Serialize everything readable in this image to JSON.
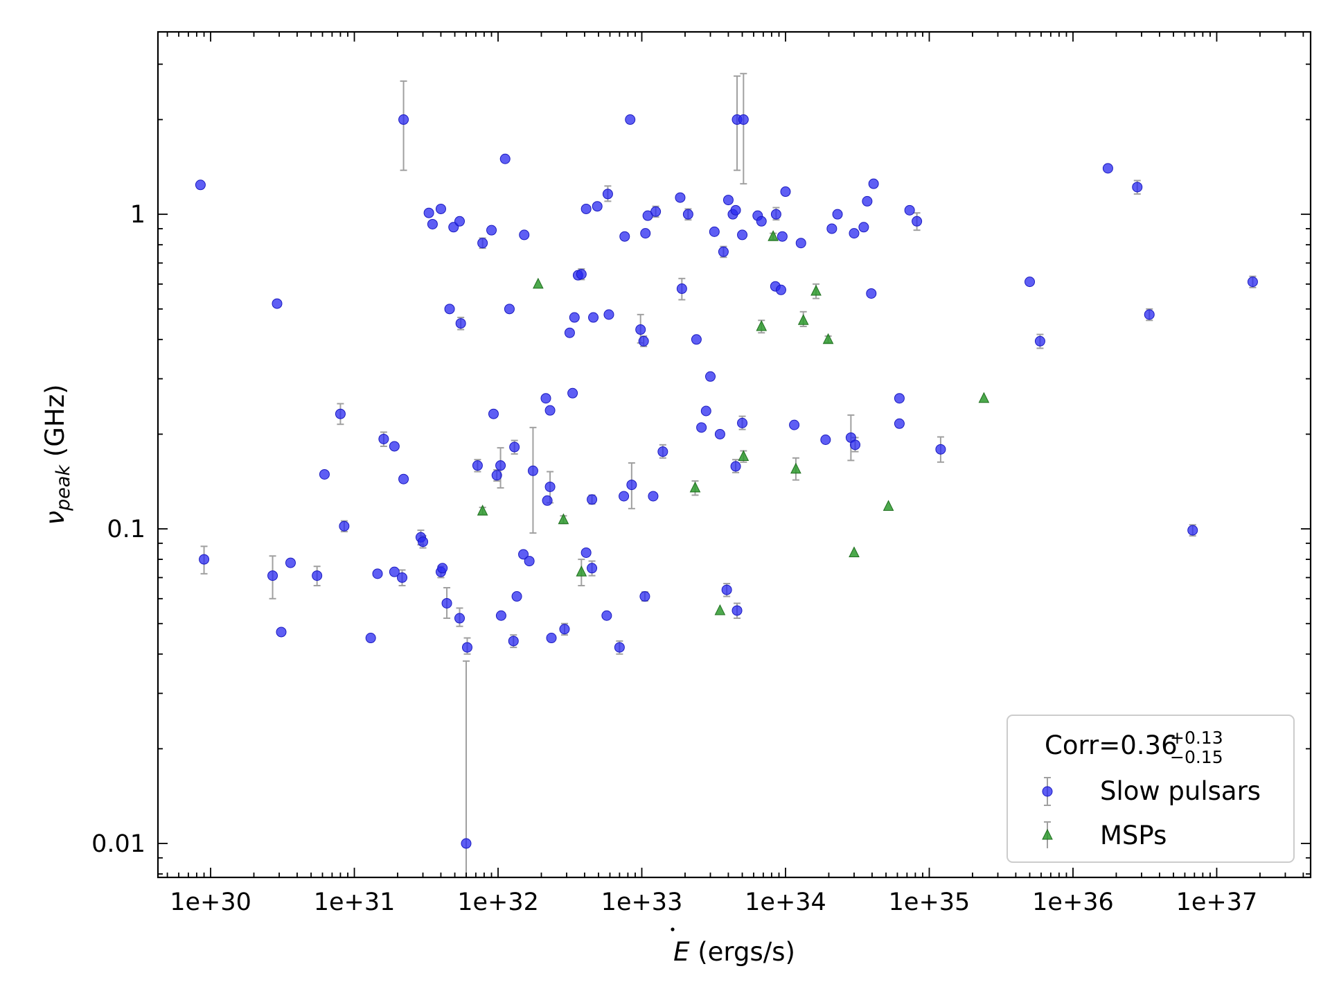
{
  "chart_data": {
    "type": "scatter",
    "xscale": "log",
    "yscale": "log",
    "xlabel": "Ė (ergs/s)",
    "ylabel": "ν_peak (GHz)",
    "xlim": [
      4.3e+29,
      4.5e+37
    ],
    "ylim": [
      0.0078,
      3.8
    ],
    "x_ticks": [
      {
        "value": 1e+30,
        "label": "1e+30"
      },
      {
        "value": 1e+31,
        "label": "1e+31"
      },
      {
        "value": 1e+32,
        "label": "1e+32"
      },
      {
        "value": 1e+33,
        "label": "1e+33"
      },
      {
        "value": 1e+34,
        "label": "1e+34"
      },
      {
        "value": 1e+35,
        "label": "1e+35"
      },
      {
        "value": 1e+36,
        "label": "1e+36"
      },
      {
        "value": 1e+37,
        "label": "1e+37"
      }
    ],
    "y_ticks": [
      {
        "value": 0.01,
        "label": "0.01"
      },
      {
        "value": 0.1,
        "label": "0.1"
      },
      {
        "value": 1,
        "label": "1"
      }
    ],
    "legend": {
      "position": "lower-right",
      "title": "Corr=0.36",
      "title_sup": "+0.13",
      "title_sub": "−0.15",
      "entries": [
        "Slow pulsars",
        "MSPs"
      ]
    },
    "colors": {
      "slow": "#2828f0",
      "msp": "#2e9a2e",
      "errorbar": "#a0a0a0"
    },
    "series": [
      {
        "name": "Slow pulsars",
        "marker": "circle",
        "points": [
          {
            "x": 8.5e+29,
            "y": 1.24
          },
          {
            "x": 9e+29,
            "y": 0.08,
            "ylo": 0.072,
            "yhi": 0.088
          },
          {
            "x": 2.7e+30,
            "y": 0.071,
            "ylo": 0.06,
            "yhi": 0.082
          },
          {
            "x": 2.9e+30,
            "y": 0.52
          },
          {
            "x": 3.1e+30,
            "y": 0.047
          },
          {
            "x": 3.6e+30,
            "y": 0.078
          },
          {
            "x": 5.5e+30,
            "y": 0.071,
            "ylo": 0.066,
            "yhi": 0.076
          },
          {
            "x": 6.2e+30,
            "y": 0.149
          },
          {
            "x": 8e+30,
            "y": 0.232,
            "ylo": 0.215,
            "yhi": 0.25
          },
          {
            "x": 8.5e+30,
            "y": 0.102,
            "ylo": 0.098,
            "yhi": 0.106
          },
          {
            "x": 1.3e+31,
            "y": 0.045
          },
          {
            "x": 1.45e+31,
            "y": 0.072
          },
          {
            "x": 1.6e+31,
            "y": 0.193,
            "ylo": 0.183,
            "yhi": 0.203
          },
          {
            "x": 1.9e+31,
            "y": 0.183
          },
          {
            "x": 1.9e+31,
            "y": 0.073
          },
          {
            "x": 2.15e+31,
            "y": 0.07,
            "ylo": 0.066,
            "yhi": 0.074
          },
          {
            "x": 2.2e+31,
            "y": 2.0,
            "ylo": 1.38,
            "yhi": 2.65
          },
          {
            "x": 2.2e+31,
            "y": 0.144
          },
          {
            "x": 2.9e+31,
            "y": 0.094,
            "ylo": 0.089,
            "yhi": 0.099
          },
          {
            "x": 3e+31,
            "y": 0.091,
            "ylo": 0.087,
            "yhi": 0.095
          },
          {
            "x": 3.3e+31,
            "y": 1.01
          },
          {
            "x": 3.5e+31,
            "y": 0.93
          },
          {
            "x": 4e+31,
            "y": 1.04
          },
          {
            "x": 4e+31,
            "y": 0.073,
            "ylo": 0.07,
            "yhi": 0.076
          },
          {
            "x": 4.1e+31,
            "y": 0.075
          },
          {
            "x": 4.4e+31,
            "y": 0.058,
            "ylo": 0.052,
            "yhi": 0.065
          },
          {
            "x": 4.6e+31,
            "y": 0.5
          },
          {
            "x": 4.9e+31,
            "y": 0.91
          },
          {
            "x": 5.4e+31,
            "y": 0.95
          },
          {
            "x": 5.4e+31,
            "y": 0.052,
            "ylo": 0.049,
            "yhi": 0.056
          },
          {
            "x": 5.5e+31,
            "y": 0.45,
            "ylo": 0.43,
            "yhi": 0.47
          },
          {
            "x": 6.1e+31,
            "y": 0.042,
            "ylo": 0.04,
            "yhi": 0.045
          },
          {
            "x": 6e+31,
            "y": 0.01,
            "ylo": 0.0078,
            "yhi": 0.038
          },
          {
            "x": 7.2e+31,
            "y": 0.159,
            "ylo": 0.152,
            "yhi": 0.166
          },
          {
            "x": 7.8e+31,
            "y": 0.81,
            "ylo": 0.78,
            "yhi": 0.84
          },
          {
            "x": 9e+31,
            "y": 0.89
          },
          {
            "x": 9.3e+31,
            "y": 0.232
          },
          {
            "x": 9.8e+31,
            "y": 0.148,
            "ylo": 0.142,
            "yhi": 0.154
          },
          {
            "x": 1.04e+32,
            "y": 0.159,
            "ylo": 0.135,
            "yhi": 0.181
          },
          {
            "x": 1.05e+32,
            "y": 0.053
          },
          {
            "x": 1.12e+32,
            "y": 1.5
          },
          {
            "x": 1.2e+32,
            "y": 0.5
          },
          {
            "x": 1.28e+32,
            "y": 0.044,
            "ylo": 0.042,
            "yhi": 0.046
          },
          {
            "x": 1.3e+32,
            "y": 0.182,
            "ylo": 0.173,
            "yhi": 0.191
          },
          {
            "x": 1.35e+32,
            "y": 0.061
          },
          {
            "x": 1.5e+32,
            "y": 0.083
          },
          {
            "x": 1.52e+32,
            "y": 0.86
          },
          {
            "x": 1.65e+32,
            "y": 0.079
          },
          {
            "x": 1.75e+32,
            "y": 0.153,
            "ylo": 0.097,
            "yhi": 0.21
          },
          {
            "x": 2.15e+32,
            "y": 0.26
          },
          {
            "x": 2.2e+32,
            "y": 0.123
          },
          {
            "x": 2.3e+32,
            "y": 0.238
          },
          {
            "x": 2.3e+32,
            "y": 0.136,
            "ylo": 0.121,
            "yhi": 0.152
          },
          {
            "x": 2.35e+32,
            "y": 0.045
          },
          {
            "x": 2.9e+32,
            "y": 0.048,
            "ylo": 0.046,
            "yhi": 0.05
          },
          {
            "x": 3.15e+32,
            "y": 0.42
          },
          {
            "x": 3.3e+32,
            "y": 0.27
          },
          {
            "x": 3.4e+32,
            "y": 0.47
          },
          {
            "x": 3.6e+32,
            "y": 0.64
          },
          {
            "x": 3.8e+32,
            "y": 0.645,
            "ylo": 0.62,
            "yhi": 0.67
          },
          {
            "x": 4.1e+32,
            "y": 1.04
          },
          {
            "x": 4.1e+32,
            "y": 0.084
          },
          {
            "x": 4.5e+32,
            "y": 0.075,
            "ylo": 0.071,
            "yhi": 0.079
          },
          {
            "x": 4.5e+32,
            "y": 0.124,
            "ylo": 0.12,
            "yhi": 0.128
          },
          {
            "x": 4.6e+32,
            "y": 0.47
          },
          {
            "x": 4.9e+32,
            "y": 1.06
          },
          {
            "x": 5.7e+32,
            "y": 0.053
          },
          {
            "x": 5.8e+32,
            "y": 1.16,
            "ylo": 1.1,
            "yhi": 1.23
          },
          {
            "x": 5.9e+32,
            "y": 0.48
          },
          {
            "x": 7e+32,
            "y": 0.042,
            "ylo": 0.04,
            "yhi": 0.044
          },
          {
            "x": 7.5e+32,
            "y": 0.127
          },
          {
            "x": 7.6e+32,
            "y": 0.85
          },
          {
            "x": 8.3e+32,
            "y": 2.0
          },
          {
            "x": 8.5e+32,
            "y": 0.138,
            "ylo": 0.116,
            "yhi": 0.162
          },
          {
            "x": 9.8e+32,
            "y": 0.43,
            "ylo": 0.39,
            "yhi": 0.48
          },
          {
            "x": 1.03e+33,
            "y": 0.395,
            "ylo": 0.38,
            "yhi": 0.41
          },
          {
            "x": 1.05e+33,
            "y": 0.061,
            "ylo": 0.059,
            "yhi": 0.063
          },
          {
            "x": 1.06e+33,
            "y": 0.87
          },
          {
            "x": 1.1e+33,
            "y": 0.99
          },
          {
            "x": 1.2e+33,
            "y": 0.127
          },
          {
            "x": 1.25e+33,
            "y": 1.02,
            "ylo": 0.98,
            "yhi": 1.06
          },
          {
            "x": 1.4e+33,
            "y": 0.176,
            "ylo": 0.168,
            "yhi": 0.185
          },
          {
            "x": 1.85e+33,
            "y": 1.13
          },
          {
            "x": 1.9e+33,
            "y": 0.58,
            "ylo": 0.535,
            "yhi": 0.625
          },
          {
            "x": 2.1e+33,
            "y": 1.0,
            "ylo": 0.96,
            "yhi": 1.04
          },
          {
            "x": 2.4e+33,
            "y": 0.4
          },
          {
            "x": 2.6e+33,
            "y": 0.21
          },
          {
            "x": 2.8e+33,
            "y": 0.237
          },
          {
            "x": 3e+33,
            "y": 0.305
          },
          {
            "x": 3.2e+33,
            "y": 0.88
          },
          {
            "x": 3.5e+33,
            "y": 0.2
          },
          {
            "x": 3.7e+33,
            "y": 0.76,
            "ylo": 0.73,
            "yhi": 0.79
          },
          {
            "x": 3.9e+33,
            "y": 0.064,
            "ylo": 0.061,
            "yhi": 0.067
          },
          {
            "x": 4e+33,
            "y": 1.11
          },
          {
            "x": 4.3e+33,
            "y": 1.0
          },
          {
            "x": 4.5e+33,
            "y": 0.158,
            "ylo": 0.151,
            "yhi": 0.166
          },
          {
            "x": 4.5e+33,
            "y": 1.03
          },
          {
            "x": 4.6e+33,
            "y": 0.055,
            "ylo": 0.052,
            "yhi": 0.058
          },
          {
            "x": 4.6e+33,
            "y": 2.0,
            "ylo": 1.38,
            "yhi": 2.75
          },
          {
            "x": 5e+33,
            "y": 0.217,
            "ylo": 0.207,
            "yhi": 0.228
          },
          {
            "x": 5e+33,
            "y": 0.86
          },
          {
            "x": 5.1e+33,
            "y": 2.0,
            "ylo": 1.25,
            "yhi": 2.8
          },
          {
            "x": 6.4e+33,
            "y": 0.99
          },
          {
            "x": 6.8e+33,
            "y": 0.95
          },
          {
            "x": 8.5e+33,
            "y": 0.59
          },
          {
            "x": 8.6e+33,
            "y": 1.0,
            "ylo": 0.96,
            "yhi": 1.05
          },
          {
            "x": 9.3e+33,
            "y": 0.575
          },
          {
            "x": 9.5e+33,
            "y": 0.85
          },
          {
            "x": 1e+34,
            "y": 1.18
          },
          {
            "x": 1.15e+34,
            "y": 0.214
          },
          {
            "x": 1.28e+34,
            "y": 0.81
          },
          {
            "x": 1.9e+34,
            "y": 0.192
          },
          {
            "x": 2.1e+34,
            "y": 0.9
          },
          {
            "x": 2.3e+34,
            "y": 1.0
          },
          {
            "x": 2.85e+34,
            "y": 0.195,
            "ylo": 0.165,
            "yhi": 0.23
          },
          {
            "x": 3e+34,
            "y": 0.87
          },
          {
            "x": 3.05e+34,
            "y": 0.185,
            "ylo": 0.176,
            "yhi": 0.195
          },
          {
            "x": 3.5e+34,
            "y": 0.91
          },
          {
            "x": 3.7e+34,
            "y": 1.1
          },
          {
            "x": 3.95e+34,
            "y": 0.56
          },
          {
            "x": 4.1e+34,
            "y": 1.25
          },
          {
            "x": 6.2e+34,
            "y": 0.26
          },
          {
            "x": 6.2e+34,
            "y": 0.216
          },
          {
            "x": 7.3e+34,
            "y": 1.03
          },
          {
            "x": 8.2e+34,
            "y": 0.95,
            "ylo": 0.89,
            "yhi": 1.01
          },
          {
            "x": 1.2e+35,
            "y": 0.179,
            "ylo": 0.163,
            "yhi": 0.196
          },
          {
            "x": 5e+35,
            "y": 0.61
          },
          {
            "x": 5.9e+35,
            "y": 0.395,
            "ylo": 0.375,
            "yhi": 0.415
          },
          {
            "x": 1.75e+36,
            "y": 1.4
          },
          {
            "x": 2.8e+36,
            "y": 1.22,
            "ylo": 1.16,
            "yhi": 1.28
          },
          {
            "x": 3.4e+36,
            "y": 0.48,
            "ylo": 0.46,
            "yhi": 0.5
          },
          {
            "x": 6.8e+36,
            "y": 0.099,
            "ylo": 0.095,
            "yhi": 0.103
          },
          {
            "x": 1.78e+37,
            "y": 0.61,
            "ylo": 0.585,
            "yhi": 0.635
          }
        ]
      },
      {
        "name": "MSPs",
        "marker": "triangle",
        "points": [
          {
            "x": 7.8e+31,
            "y": 0.114,
            "ylo": 0.111,
            "yhi": 0.117
          },
          {
            "x": 1.9e+32,
            "y": 0.6
          },
          {
            "x": 2.85e+32,
            "y": 0.107,
            "ylo": 0.104,
            "yhi": 0.11
          },
          {
            "x": 3.8e+32,
            "y": 0.073,
            "ylo": 0.066,
            "yhi": 0.08
          },
          {
            "x": 2.35e+33,
            "y": 0.135,
            "ylo": 0.128,
            "yhi": 0.142
          },
          {
            "x": 3.5e+33,
            "y": 0.055
          },
          {
            "x": 5.1e+33,
            "y": 0.17,
            "ylo": 0.163,
            "yhi": 0.177
          },
          {
            "x": 6.8e+33,
            "y": 0.44,
            "ylo": 0.42,
            "yhi": 0.46
          },
          {
            "x": 8.2e+33,
            "y": 0.85,
            "ylo": 0.83,
            "yhi": 0.87
          },
          {
            "x": 1.18e+34,
            "y": 0.155,
            "ylo": 0.143,
            "yhi": 0.168
          },
          {
            "x": 1.33e+34,
            "y": 0.46,
            "ylo": 0.44,
            "yhi": 0.49
          },
          {
            "x": 1.63e+34,
            "y": 0.57,
            "ylo": 0.54,
            "yhi": 0.6
          },
          {
            "x": 1.98e+34,
            "y": 0.4,
            "ylo": 0.39,
            "yhi": 0.41
          },
          {
            "x": 3e+34,
            "y": 0.084
          },
          {
            "x": 5.2e+34,
            "y": 0.118
          },
          {
            "x": 2.4e+35,
            "y": 0.26
          }
        ]
      }
    ]
  }
}
